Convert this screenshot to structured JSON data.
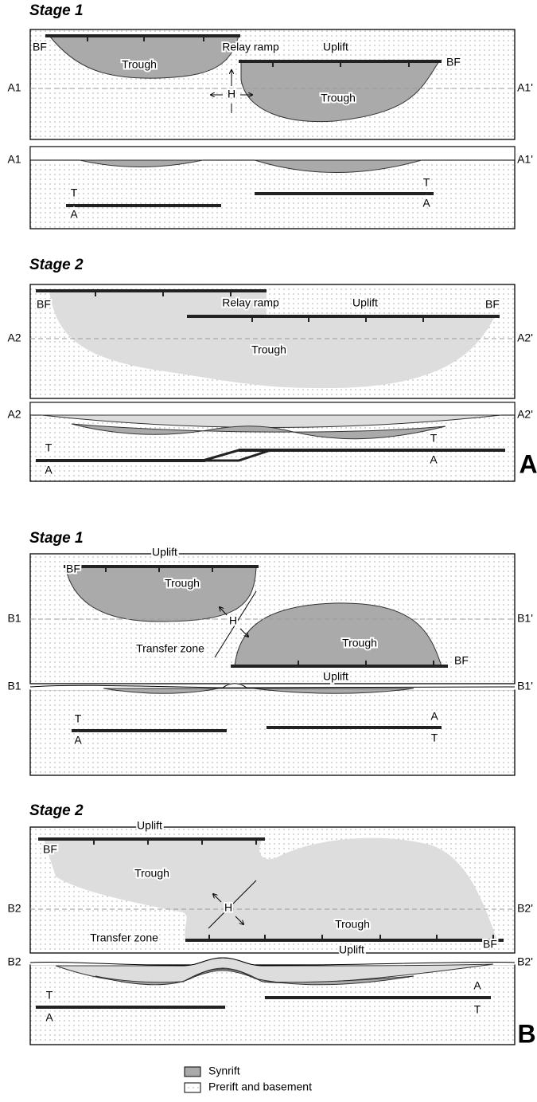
{
  "panels": [
    {
      "letter": "A",
      "stages": [
        {
          "title": "Stage 1",
          "map": {
            "left": "A1",
            "right": "A1'",
            "labels": [
              "BF",
              "Trough",
              "Relay ramp",
              "Uplift",
              "BF",
              "Trough",
              "H"
            ]
          },
          "section": {
            "left": "A1",
            "right": "A1'",
            "labels": [
              "T",
              "A",
              "T",
              "A"
            ]
          }
        },
        {
          "title": "Stage 2",
          "map": {
            "left": "A2",
            "right": "A2'",
            "labels": [
              "BF",
              "Relay ramp",
              "Uplift",
              "BF",
              "Trough"
            ]
          },
          "section": {
            "left": "A2",
            "right": "A2'",
            "labels": [
              "T",
              "A",
              "T",
              "A"
            ]
          }
        }
      ]
    },
    {
      "letter": "B",
      "stages": [
        {
          "title": "Stage 1",
          "map": {
            "left": "B1",
            "right": "B1'",
            "labels": [
              "Uplift",
              "BF",
              "Trough",
              "H",
              "Transfer zone",
              "Trough",
              "BF",
              "Uplift"
            ]
          },
          "section": {
            "left": "B1",
            "right": "B1'",
            "labels": [
              "T",
              "A",
              "A",
              "T"
            ]
          }
        },
        {
          "title": "Stage 2",
          "map": {
            "left": "B2",
            "right": "B2'",
            "labels": [
              "Uplift",
              "BF",
              "Trough",
              "H",
              "Transfer zone",
              "Trough",
              "BF",
              "Uplift"
            ]
          },
          "section": {
            "left": "B2",
            "right": "B2'",
            "labels": [
              "T",
              "A",
              "A",
              "T"
            ]
          }
        }
      ]
    }
  ],
  "legend": {
    "items": [
      "Synrift",
      "Prerift and basement"
    ]
  }
}
